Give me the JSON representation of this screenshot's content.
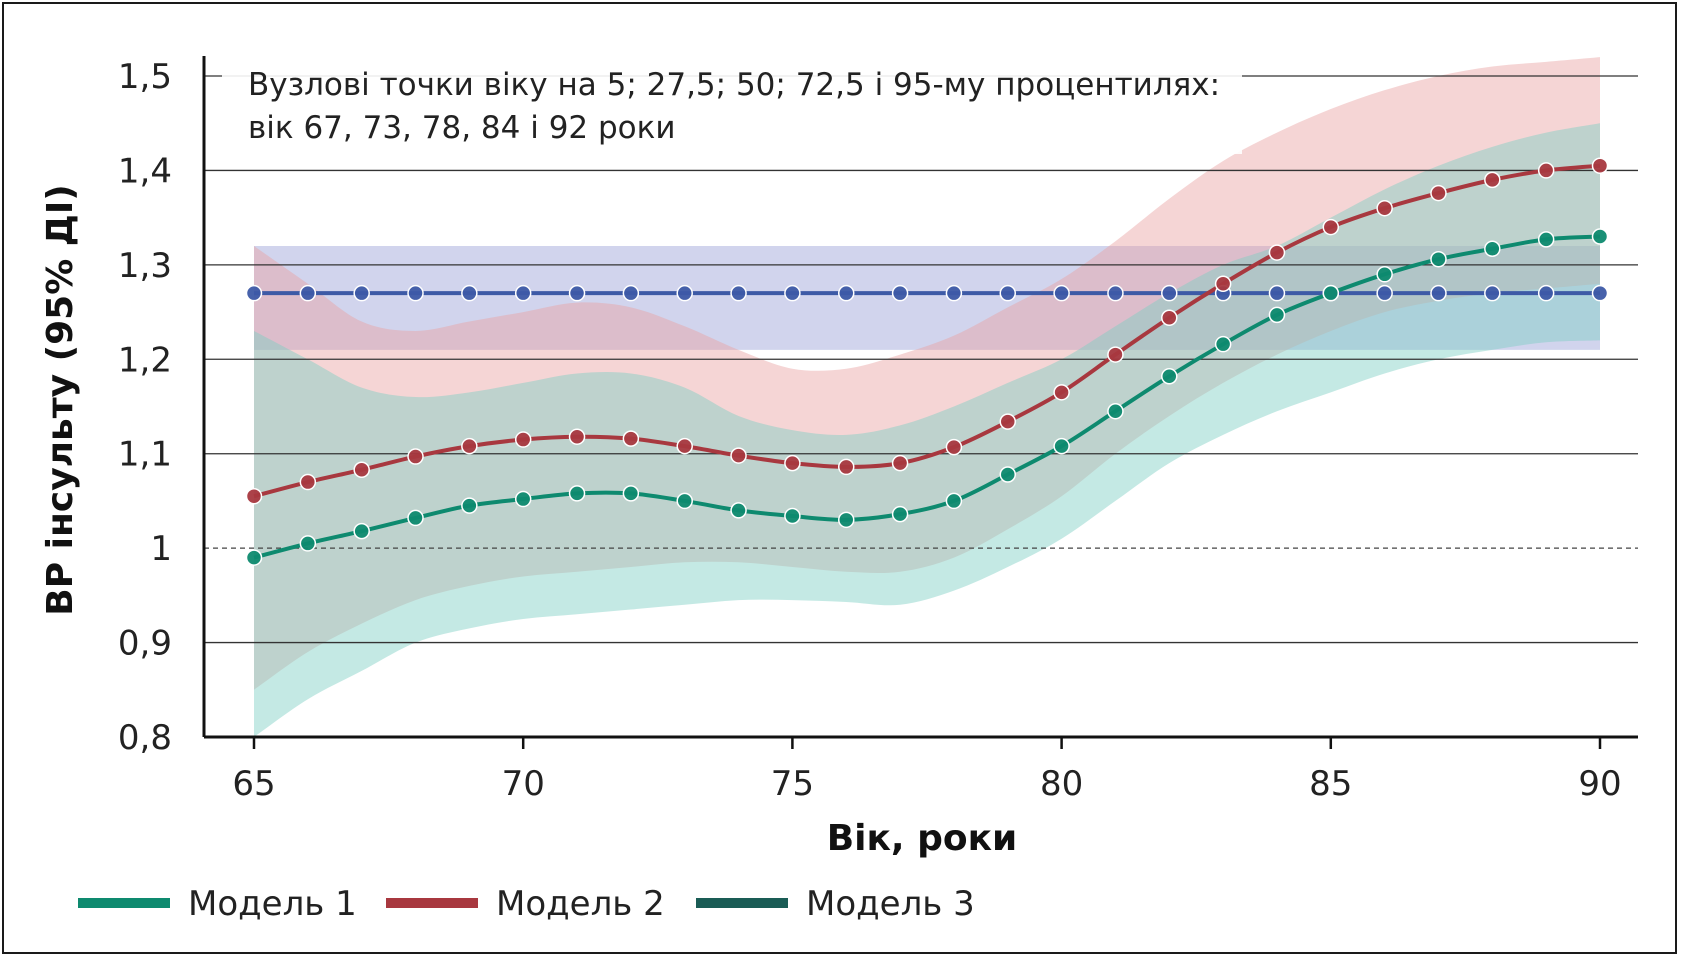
{
  "chart_data": {
    "type": "line",
    "xlabel": "Вік, роки",
    "ylabel": "ВР інсульту (95% ДІ)",
    "xlim": [
      65,
      90
    ],
    "ylim": [
      0.8,
      1.5
    ],
    "x_ticks": [
      {
        "value": 65,
        "label": "65"
      },
      {
        "value": 70,
        "label": "70"
      },
      {
        "value": 75,
        "label": "75"
      },
      {
        "value": 80,
        "label": "80"
      },
      {
        "value": 85,
        "label": "85"
      },
      {
        "value": 90,
        "label": "90"
      }
    ],
    "y_ticks": [
      {
        "value": 0.8,
        "label": "0,8"
      },
      {
        "value": 0.9,
        "label": "0,9"
      },
      {
        "value": 1.0,
        "label": "1"
      },
      {
        "value": 1.1,
        "label": "1,1"
      },
      {
        "value": 1.2,
        "label": "1,2"
      },
      {
        "value": 1.3,
        "label": "1,3"
      },
      {
        "value": 1.4,
        "label": "1,4"
      },
      {
        "value": 1.5,
        "label": "1,5"
      }
    ],
    "reference_line": 1.0,
    "annotation": {
      "line1": "Вузлові точки віку на 5; 27,5; 50; 72,5 і 95-му процентилях:",
      "line2": "вік 67, 73, 78, 84 і 92 роки"
    },
    "grid": "horizontal",
    "legend_position": "bottom-left",
    "x": [
      65,
      66,
      67,
      68,
      69,
      70,
      71,
      72,
      73,
      74,
      75,
      76,
      77,
      78,
      79,
      80,
      81,
      82,
      83,
      84,
      85,
      86,
      87,
      88,
      89,
      90
    ],
    "series": [
      {
        "name": "Модель 1",
        "line_color": "#0e8a6f",
        "band_color": "#7ccfc3",
        "values": [
          0.99,
          1.005,
          1.018,
          1.032,
          1.045,
          1.052,
          1.058,
          1.058,
          1.05,
          1.04,
          1.034,
          1.03,
          1.036,
          1.05,
          1.078,
          1.108,
          1.145,
          1.182,
          1.216,
          1.247,
          1.27,
          1.29,
          1.306,
          1.317,
          1.327,
          1.33
        ],
        "lower": [
          0.8,
          0.84,
          0.87,
          0.9,
          0.915,
          0.925,
          0.93,
          0.935,
          0.94,
          0.945,
          0.945,
          0.943,
          0.94,
          0.955,
          0.98,
          1.01,
          1.05,
          1.09,
          1.12,
          1.145,
          1.165,
          1.185,
          1.2,
          1.21,
          1.218,
          1.22
        ],
        "upper": [
          1.23,
          1.2,
          1.17,
          1.16,
          1.165,
          1.175,
          1.185,
          1.185,
          1.17,
          1.14,
          1.125,
          1.12,
          1.13,
          1.15,
          1.175,
          1.2,
          1.235,
          1.27,
          1.3,
          1.32,
          1.35,
          1.38,
          1.405,
          1.425,
          1.44,
          1.45
        ]
      },
      {
        "name": "Модель 2",
        "line_color": "#a8383f",
        "band_color": "#e8a2a2",
        "values": [
          1.055,
          1.07,
          1.083,
          1.097,
          1.108,
          1.115,
          1.118,
          1.116,
          1.108,
          1.098,
          1.09,
          1.086,
          1.09,
          1.107,
          1.134,
          1.165,
          1.205,
          1.244,
          1.28,
          1.313,
          1.34,
          1.36,
          1.376,
          1.39,
          1.4,
          1.405
        ],
        "lower": [
          0.85,
          0.89,
          0.92,
          0.945,
          0.96,
          0.97,
          0.975,
          0.98,
          0.985,
          0.985,
          0.98,
          0.975,
          0.975,
          0.99,
          1.02,
          1.055,
          1.1,
          1.14,
          1.175,
          1.205,
          1.23,
          1.25,
          1.262,
          1.27,
          1.275,
          1.28
        ],
        "upper": [
          1.32,
          1.28,
          1.24,
          1.23,
          1.24,
          1.25,
          1.26,
          1.255,
          1.235,
          1.21,
          1.19,
          1.19,
          1.205,
          1.225,
          1.255,
          1.285,
          1.325,
          1.37,
          1.41,
          1.44,
          1.465,
          1.485,
          1.5,
          1.51,
          1.515,
          1.52
        ]
      },
      {
        "name": "Модель 3",
        "line_color": "#1a5c55",
        "band_color": "#9aa0d8",
        "values": [
          1.27,
          1.27,
          1.27,
          1.27,
          1.27,
          1.27,
          1.27,
          1.27,
          1.27,
          1.27,
          1.27,
          1.27,
          1.27,
          1.27,
          1.27,
          1.27,
          1.27,
          1.27,
          1.27,
          1.27,
          1.27,
          1.27,
          1.27,
          1.27,
          1.27,
          1.27
        ],
        "lower": [
          1.21,
          1.21,
          1.21,
          1.21,
          1.21,
          1.21,
          1.21,
          1.21,
          1.21,
          1.21,
          1.21,
          1.21,
          1.21,
          1.21,
          1.21,
          1.21,
          1.21,
          1.21,
          1.21,
          1.21,
          1.21,
          1.21,
          1.21,
          1.21,
          1.21,
          1.21
        ],
        "upper": [
          1.32,
          1.32,
          1.32,
          1.32,
          1.32,
          1.32,
          1.32,
          1.32,
          1.32,
          1.32,
          1.32,
          1.32,
          1.32,
          1.32,
          1.32,
          1.32,
          1.32,
          1.32,
          1.32,
          1.32,
          1.32,
          1.32,
          1.32,
          1.32,
          1.32,
          1.32
        ]
      }
    ],
    "band_order": [
      2,
      1,
      0
    ],
    "marker_series_colors": {
      "Модель 3": "#3d5aa6"
    }
  }
}
